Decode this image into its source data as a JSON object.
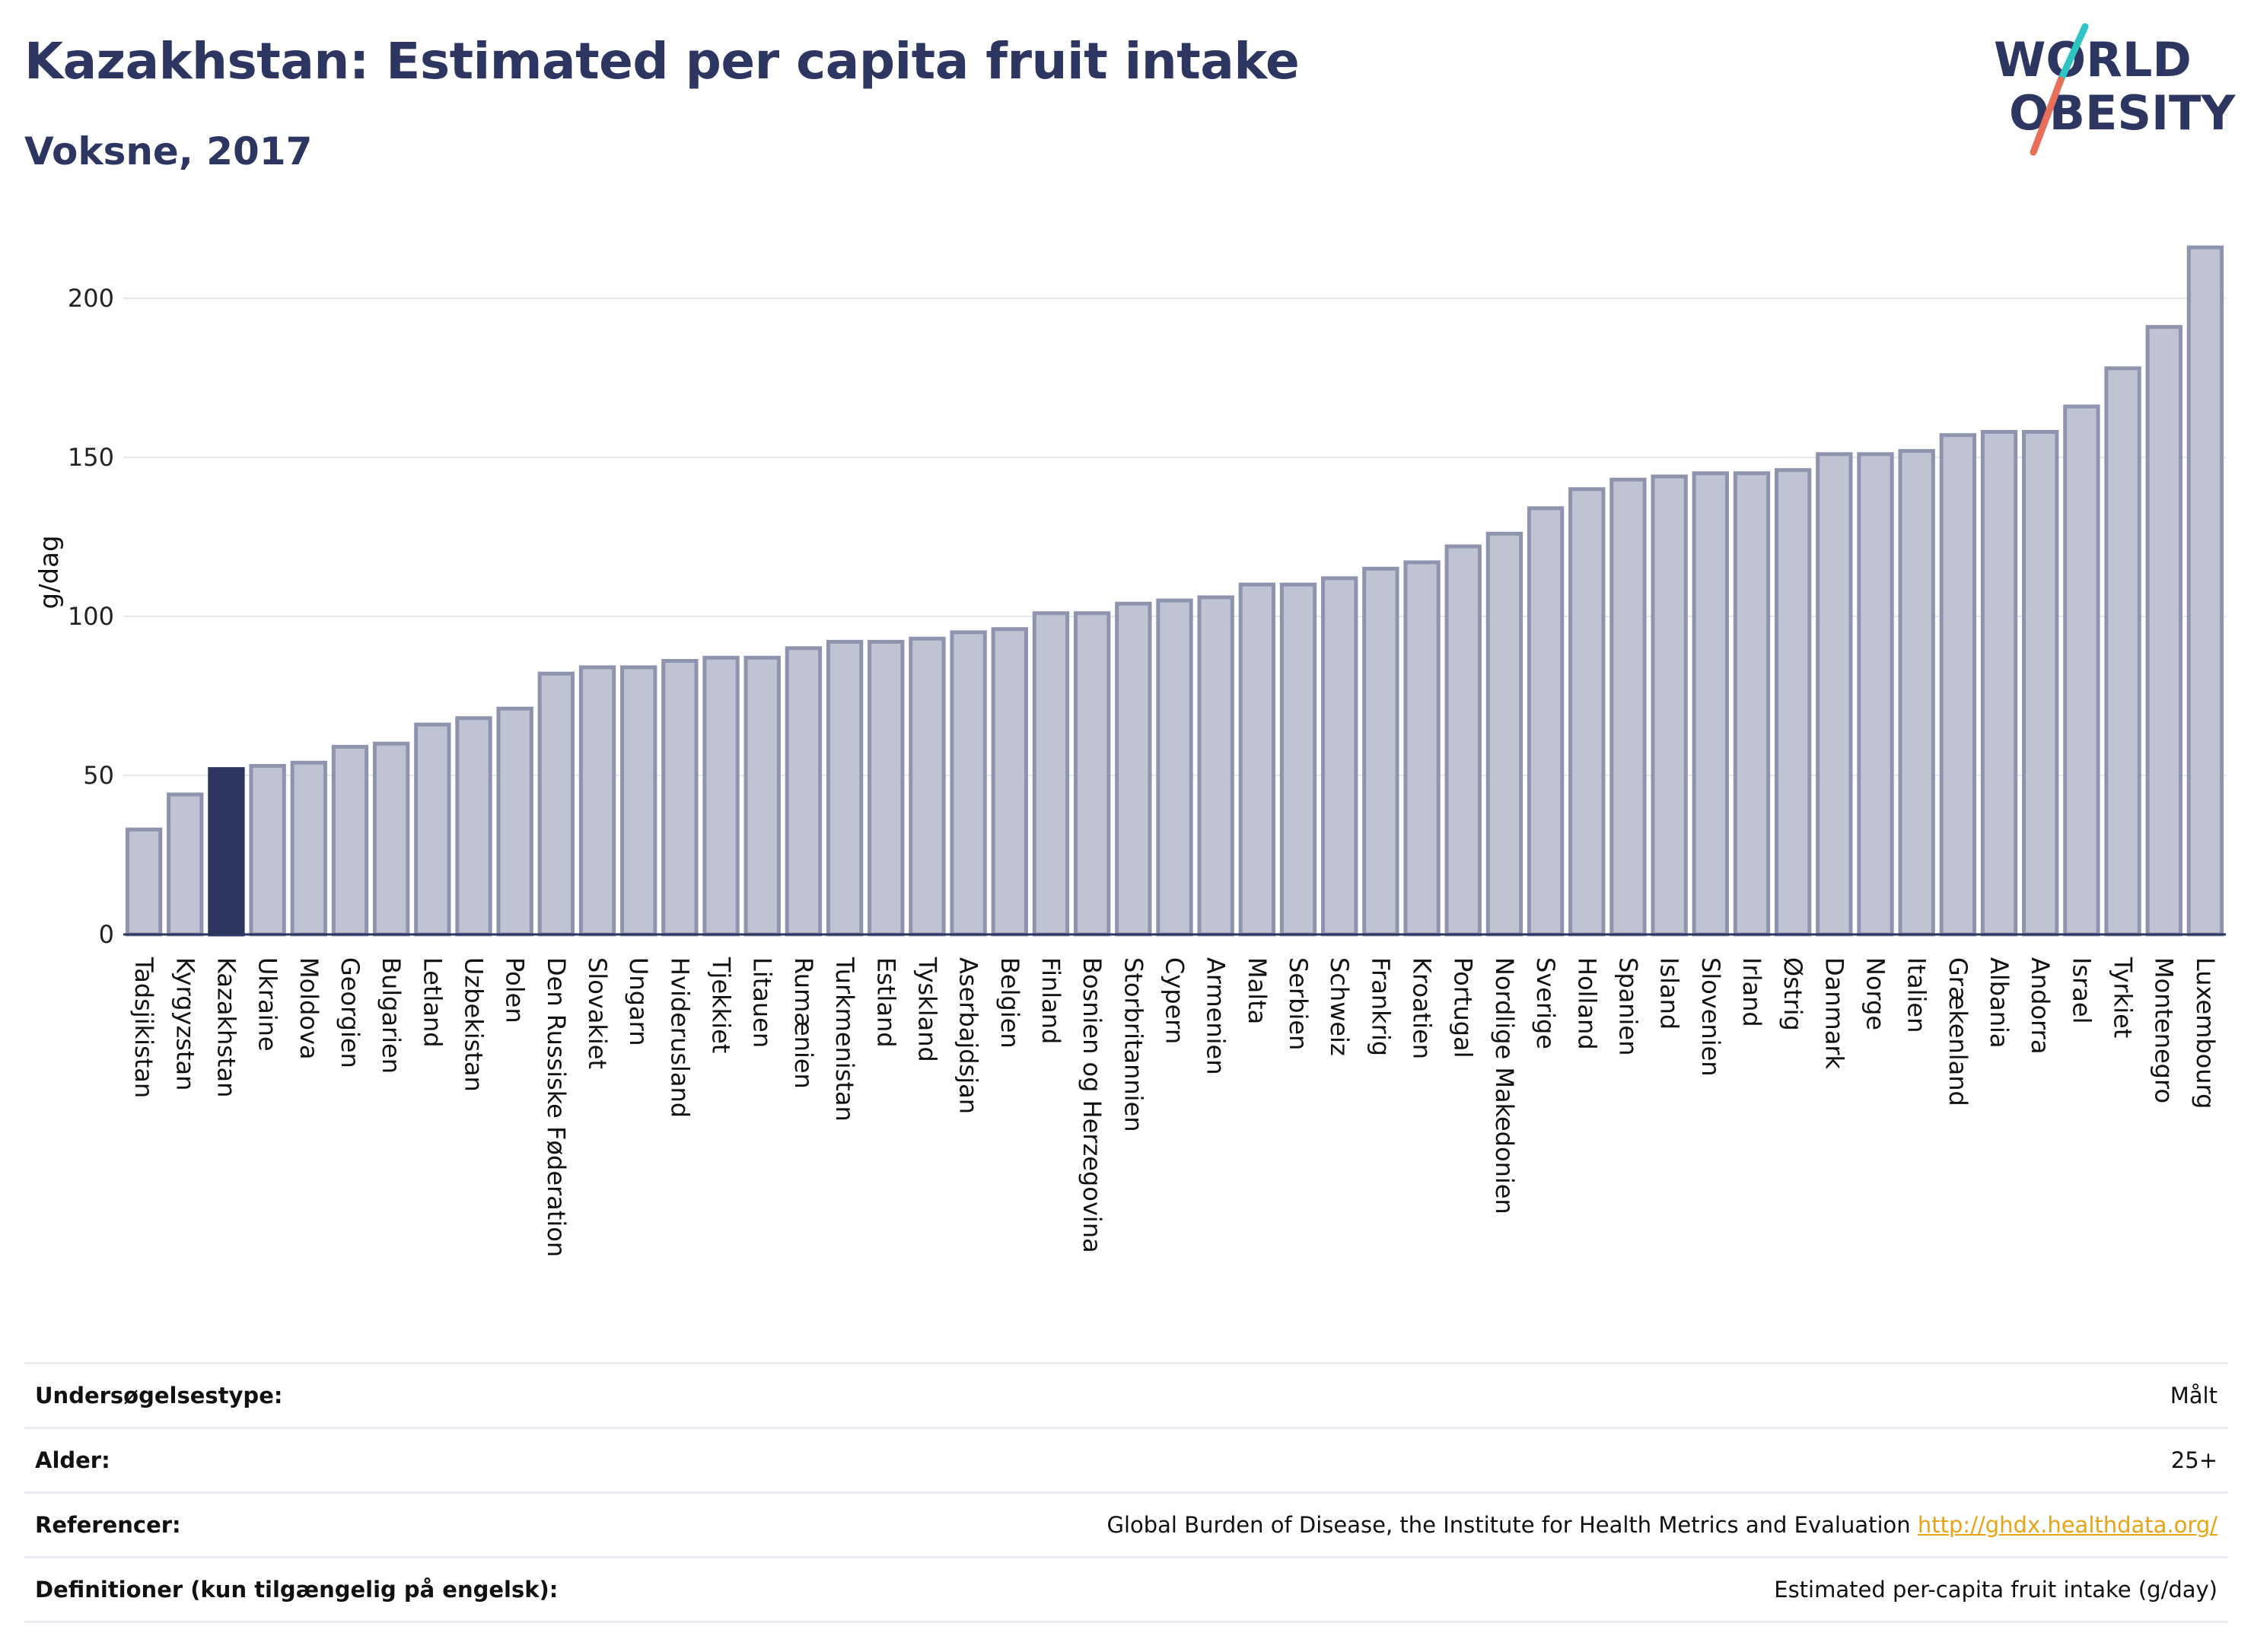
{
  "header": {
    "title": "Kazakhstan: Estimated per capita fruit intake",
    "subtitle": "Voksne, 2017"
  },
  "logo": {
    "line1": "WORLD",
    "line2": "OBESITY",
    "accent_colors": [
      "#2ec4c4",
      "#e8705a"
    ]
  },
  "colors": {
    "bar": "#bfc3d2",
    "bar_border": "#8e94ad",
    "highlight": "#2d3561",
    "text": "#2d3561"
  },
  "chart_data": {
    "type": "bar",
    "ylabel": "g/dag",
    "ylim": [
      0,
      220
    ],
    "yticks": [
      0,
      50,
      100,
      150,
      200
    ],
    "grid": true,
    "highlight": "Kazakhstan",
    "categories": [
      "Tadsjikistan",
      "Kyrgyzstan",
      "Kazakhstan",
      "Ukraine",
      "Moldova",
      "Georgien",
      "Bulgarien",
      "Letland",
      "Uzbekistan",
      "Polen",
      "Den Russiske Føderation",
      "Slovakiet",
      "Ungarn",
      "Hviderusland",
      "Tjekkiet",
      "Litauen",
      "Rumænien",
      "Turkmenistan",
      "Estland",
      "Tyskland",
      "Aserbajdsjan",
      "Belgien",
      "Finland",
      "Bosnien og Herzegovina",
      "Storbritannien",
      "Cypern",
      "Armenien",
      "Malta",
      "Serbien",
      "Schweiz",
      "Frankrig",
      "Kroatien",
      "Portugal",
      "Nordlige Makedonien",
      "Sverige",
      "Holland",
      "Spanien",
      "Island",
      "Slovenien",
      "Irland",
      "Østrig",
      "Danmark",
      "Norge",
      "Italien",
      "Grækenland",
      "Albania",
      "Andorra",
      "Israel",
      "Tyrkiet",
      "Montenegro",
      "Luxembourg"
    ],
    "values": [
      33,
      44,
      52,
      53,
      54,
      59,
      60,
      66,
      68,
      71,
      82,
      84,
      84,
      86,
      87,
      87,
      90,
      92,
      92,
      93,
      95,
      96,
      101,
      101,
      104,
      105,
      106,
      110,
      110,
      112,
      115,
      117,
      122,
      126,
      134,
      140,
      143,
      144,
      145,
      145,
      146,
      151,
      151,
      152,
      157,
      158,
      158,
      166,
      178,
      191,
      216
    ]
  },
  "info": [
    {
      "label": "Undersøgelsestype:",
      "value": "Målt"
    },
    {
      "label": "Alder:",
      "value": "25+"
    },
    {
      "label": "Referencer:",
      "value": "Global Burden of Disease, the Institute for Health Metrics and Evaluation",
      "link": "http://ghdx.healthdata.org/"
    },
    {
      "label": "Definitioner (kun tilgængelig på engelsk):",
      "value": "Estimated per-capita fruit intake (g/day)"
    }
  ]
}
